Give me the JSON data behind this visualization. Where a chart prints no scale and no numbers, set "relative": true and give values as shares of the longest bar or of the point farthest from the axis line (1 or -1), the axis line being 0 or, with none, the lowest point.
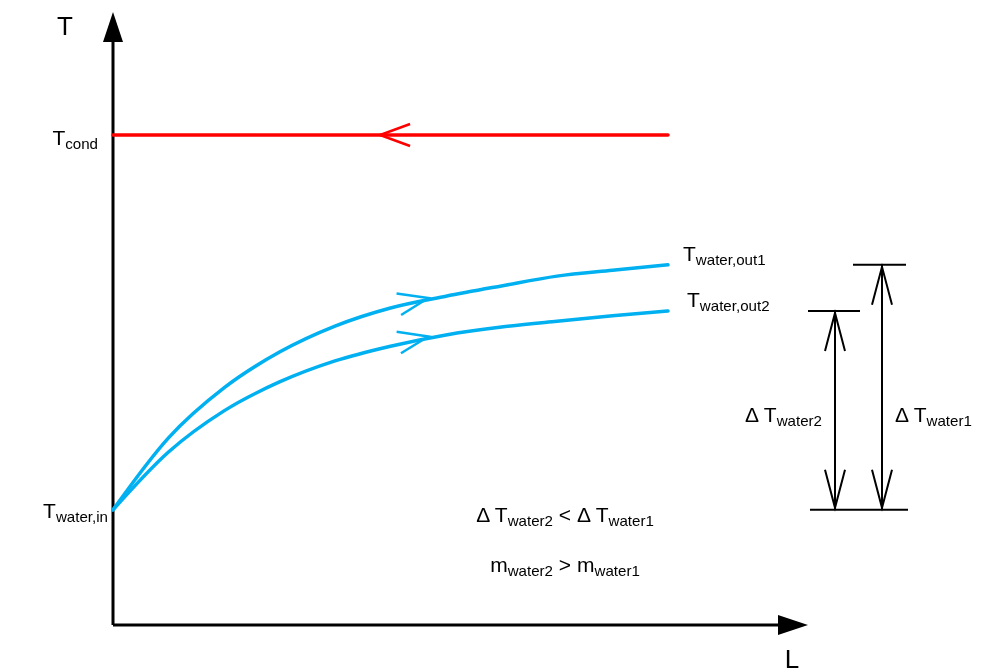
{
  "chart_data": {
    "type": "line",
    "relative": true,
    "xlabel": "L",
    "ylabel": "T",
    "categories": [
      null,
      null,
      null,
      null,
      null,
      null,
      null,
      null,
      null,
      null,
      null
    ],
    "series": [
      {
        "name": "T$_{cond}$",
        "color": "#ff0000",
        "values": [
          1,
          1,
          1,
          1,
          1,
          1,
          1,
          1,
          1,
          1,
          1
        ]
      },
      {
        "name": "T$_{water,out1}$",
        "color": "#00b0f0",
        "values": [
          0.235,
          0.382,
          0.484,
          0.557,
          0.61,
          0.647,
          0.671,
          0.692,
          0.712,
          0.724,
          0.735
        ]
      },
      {
        "name": "T$_{water,out2}$",
        "color": "#00b0f0",
        "values": [
          0.235,
          0.353,
          0.437,
          0.496,
          0.539,
          0.569,
          0.592,
          0.608,
          0.62,
          0.631,
          0.641
        ]
      }
    ],
    "annotations": [
      "T$_{water,in}$",
      "Δ T$_{water2}$ < Δ T$_{water1}$",
      "m$_{water2}$ > m$_{water1}$",
      "Δ T$_{water2}$",
      "Δ T$_{water1}$"
    ]
  }
}
